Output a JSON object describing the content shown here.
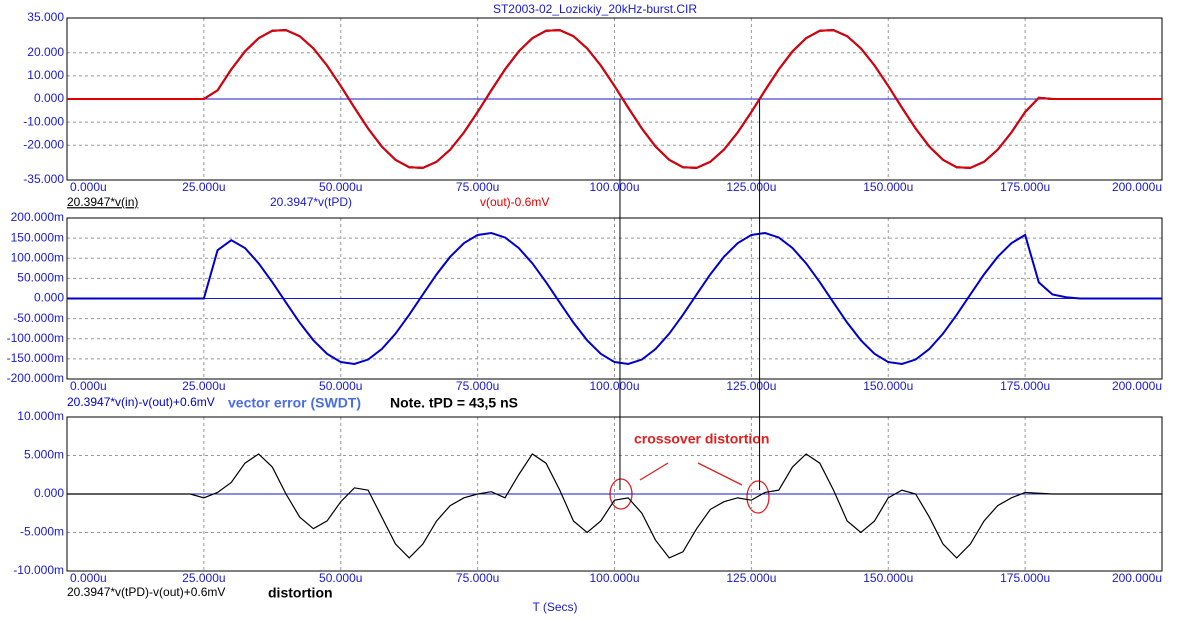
{
  "title": "ST2003-02_Lozickiy_20kHz-burst.CIR",
  "x_label": "T (Secs)",
  "cursors": [
    101,
    126.5
  ],
  "chart_data": [
    {
      "type": "line",
      "xlim": [
        0,
        200
      ],
      "xticks": [
        {
          "value": 0,
          "label": "0.000u"
        },
        {
          "value": 25,
          "label": "25.000u"
        },
        {
          "value": 50,
          "label": "50.000u"
        },
        {
          "value": 75,
          "label": "75.000u"
        },
        {
          "value": 100,
          "label": "100.000u"
        },
        {
          "value": 125,
          "label": "125.000u"
        },
        {
          "value": 150,
          "label": "150.000u"
        },
        {
          "value": 175,
          "label": "175.000u"
        },
        {
          "value": 200,
          "label": "200.000u"
        }
      ],
      "ylim": [
        -35,
        35
      ],
      "yticks": [
        {
          "value": 35,
          "label": "35.000"
        },
        {
          "value": 20,
          "label": "20.000"
        },
        {
          "value": 10,
          "label": "10.000"
        },
        {
          "value": 0,
          "label": "0.000"
        },
        {
          "value": -10,
          "label": "-10.000"
        },
        {
          "value": -20,
          "label": "-20.000"
        },
        {
          "value": -35,
          "label": "-35.000"
        }
      ],
      "grid": true,
      "x": [
        0,
        2.5,
        5,
        7.5,
        10,
        12.5,
        15,
        17.5,
        20,
        22.5,
        25,
        27.5,
        30,
        32.5,
        35,
        37.5,
        40,
        42.5,
        45,
        47.5,
        50,
        52.5,
        55,
        57.5,
        60,
        62.5,
        65,
        67.5,
        70,
        72.5,
        75,
        77.5,
        80,
        82.5,
        85,
        87.5,
        90,
        92.5,
        95,
        97.5,
        100,
        102.5,
        105,
        107.5,
        110,
        112.5,
        115,
        117.5,
        120,
        122.5,
        125,
        127.5,
        130,
        132.5,
        135,
        137.5,
        140,
        142.5,
        145,
        147.5,
        150,
        152.5,
        155,
        157.5,
        160,
        162.5,
        165,
        167.5,
        170,
        172.5,
        175,
        177.5,
        180,
        182.5,
        185,
        187.5,
        190,
        192.5,
        195,
        197.5,
        200
      ],
      "series": [
        {
          "name": "20.3947*v(in)",
          "color": "#000000",
          "values": [
            0,
            0,
            0,
            0,
            0,
            0,
            0,
            0,
            0,
            0,
            0,
            3.76,
            12.77,
            20.54,
            26.29,
            29.47,
            29.76,
            27.14,
            21.87,
            14.45,
            5.62,
            -3.76,
            -12.77,
            -20.54,
            -26.29,
            -29.47,
            -29.76,
            -27.14,
            -21.87,
            -14.45,
            -5.62,
            3.76,
            12.77,
            20.54,
            26.29,
            29.47,
            29.76,
            27.14,
            21.87,
            14.45,
            5.62,
            -3.76,
            -12.77,
            -20.54,
            -26.29,
            -29.47,
            -29.76,
            -27.14,
            -21.87,
            -14.45,
            -5.62,
            3.76,
            12.77,
            20.54,
            26.29,
            29.47,
            29.76,
            27.14,
            21.87,
            14.45,
            5.62,
            -3.76,
            -12.77,
            -20.54,
            -26.29,
            -29.47,
            -29.76,
            -27.14,
            -21.87,
            -14.45,
            -5.62,
            0.5,
            0,
            0,
            0,
            0,
            0,
            0,
            0,
            0,
            0
          ]
        },
        {
          "name": "20.3947*v(tPD)",
          "color": "#1a1ac8",
          "values": [
            0,
            0,
            0,
            0,
            0,
            0,
            0,
            0,
            0,
            0,
            0,
            3.76,
            12.77,
            20.54,
            26.29,
            29.47,
            29.76,
            27.14,
            21.87,
            14.45,
            5.62,
            -3.76,
            -12.77,
            -20.54,
            -26.29,
            -29.47,
            -29.76,
            -27.14,
            -21.87,
            -14.45,
            -5.62,
            3.76,
            12.77,
            20.54,
            26.29,
            29.47,
            29.76,
            27.14,
            21.87,
            14.45,
            5.62,
            -3.76,
            -12.77,
            -20.54,
            -26.29,
            -29.47,
            -29.76,
            -27.14,
            -21.87,
            -14.45,
            -5.62,
            3.76,
            12.77,
            20.54,
            26.29,
            29.47,
            29.76,
            27.14,
            21.87,
            14.45,
            5.62,
            -3.76,
            -12.77,
            -20.54,
            -26.29,
            -29.47,
            -29.76,
            -27.14,
            -21.87,
            -14.45,
            -5.62,
            0.5,
            0,
            0,
            0,
            0,
            0,
            0,
            0,
            0,
            0
          ]
        },
        {
          "name": "v(out)-0.6mV",
          "color": "#e00000",
          "values": [
            0,
            0,
            0,
            0,
            0,
            0,
            0,
            0,
            0,
            0,
            0,
            3.76,
            12.77,
            20.54,
            26.29,
            29.47,
            29.76,
            27.14,
            21.87,
            14.45,
            5.62,
            -3.76,
            -12.77,
            -20.54,
            -26.29,
            -29.47,
            -29.76,
            -27.14,
            -21.87,
            -14.45,
            -5.62,
            3.76,
            12.77,
            20.54,
            26.29,
            29.47,
            29.76,
            27.14,
            21.87,
            14.45,
            5.62,
            -3.76,
            -12.77,
            -20.54,
            -26.29,
            -29.47,
            -29.76,
            -27.14,
            -21.87,
            -14.45,
            -5.62,
            3.76,
            12.77,
            20.54,
            26.29,
            29.47,
            29.76,
            27.14,
            21.87,
            14.45,
            5.62,
            -3.76,
            -12.77,
            -20.54,
            -26.29,
            -29.47,
            -29.76,
            -27.14,
            -21.87,
            -14.45,
            -5.62,
            0.5,
            0,
            0,
            0,
            0,
            0,
            0,
            0,
            0,
            0
          ]
        }
      ]
    },
    {
      "type": "line",
      "xlim": [
        0,
        200
      ],
      "xticks": [
        {
          "value": 0,
          "label": "0.000u"
        },
        {
          "value": 25,
          "label": "25.000u"
        },
        {
          "value": 50,
          "label": "50.000u"
        },
        {
          "value": 75,
          "label": "75.000u"
        },
        {
          "value": 100,
          "label": "100.000u"
        },
        {
          "value": 125,
          "label": "125.000u"
        },
        {
          "value": 150,
          "label": "150.000u"
        },
        {
          "value": 175,
          "label": "175.000u"
        },
        {
          "value": 200,
          "label": "200.000u"
        }
      ],
      "ylim": [
        -200,
        200
      ],
      "yticks": [
        {
          "value": 200,
          "label": "200.000m"
        },
        {
          "value": 150,
          "label": "150.000m"
        },
        {
          "value": 100,
          "label": "100.000m"
        },
        {
          "value": 50,
          "label": "50.000m"
        },
        {
          "value": 0,
          "label": "0.000"
        },
        {
          "value": -50,
          "label": "-50.000m"
        },
        {
          "value": -100,
          "label": "-100.000m"
        },
        {
          "value": -150,
          "label": "-150.000m"
        },
        {
          "value": -200,
          "label": "-200.000m"
        }
      ],
      "grid": true,
      "annotations": [
        "vector error (SWDT)",
        "Note. tPD = 43,5 nS"
      ],
      "x": [
        0,
        2.5,
        5,
        7.5,
        10,
        12.5,
        15,
        17.5,
        20,
        22.5,
        25,
        27.5,
        30,
        32.5,
        35,
        37.5,
        40,
        42.5,
        45,
        47.5,
        50,
        52.5,
        55,
        57.5,
        60,
        62.5,
        65,
        67.5,
        70,
        72.5,
        75,
        77.5,
        80,
        82.5,
        85,
        87.5,
        90,
        92.5,
        95,
        97.5,
        100,
        102.5,
        105,
        107.5,
        110,
        112.5,
        115,
        117.5,
        120,
        122.5,
        125,
        127.5,
        130,
        132.5,
        135,
        137.5,
        140,
        142.5,
        145,
        147.5,
        150,
        152.5,
        155,
        157.5,
        160,
        162.5,
        165,
        167.5,
        170,
        172.5,
        175,
        177.5,
        180,
        182.5,
        185,
        187.5,
        190,
        192.5,
        195,
        197.5,
        200
      ],
      "series": [
        {
          "name": "20.3947*v(in)-v(out)+0.6mV",
          "color": "#0000c8",
          "values": [
            0,
            0,
            0,
            0,
            0,
            0,
            0,
            0,
            0,
            0,
            0,
            120,
            145,
            125.5,
            87.4,
            40.6,
            -10.2,
            -60,
            -103.8,
            -137.6,
            -157.9,
            -162.7,
            -151.6,
            -125.5,
            -87.4,
            -40.6,
            10.2,
            60,
            103.8,
            137.6,
            157.9,
            162.7,
            151.6,
            125.5,
            87.4,
            40.6,
            -10.2,
            -60,
            -103.8,
            -137.6,
            -157.9,
            -162.7,
            -151.6,
            -125.5,
            -87.4,
            -40.6,
            10.2,
            60,
            103.8,
            137.6,
            157.9,
            162.7,
            151.6,
            125.5,
            87.4,
            40.6,
            -10.2,
            -60,
            -103.8,
            -137.6,
            -157.9,
            -162.7,
            -151.6,
            -125.5,
            -87.4,
            -40.6,
            10.2,
            60,
            103.8,
            137.6,
            157.9,
            40,
            10,
            3,
            0,
            0,
            0,
            0,
            0,
            0,
            0
          ]
        }
      ]
    },
    {
      "type": "line",
      "xlim": [
        0,
        200
      ],
      "xticks": [
        {
          "value": 0,
          "label": "0.000u"
        },
        {
          "value": 25,
          "label": "25.000u"
        },
        {
          "value": 50,
          "label": "50.000u"
        },
        {
          "value": 75,
          "label": "75.000u"
        },
        {
          "value": 100,
          "label": "100.000u"
        },
        {
          "value": 125,
          "label": "125.000u"
        },
        {
          "value": 150,
          "label": "150.000u"
        },
        {
          "value": 175,
          "label": "175.000u"
        },
        {
          "value": 200,
          "label": "200.000u"
        }
      ],
      "ylim": [
        -10,
        10
      ],
      "yticks": [
        {
          "value": 10,
          "label": "10.000m"
        },
        {
          "value": 5,
          "label": "5.000m"
        },
        {
          "value": 0,
          "label": "0.000"
        },
        {
          "value": -5,
          "label": "-5.000m"
        },
        {
          "value": -10,
          "label": "-10.000m"
        }
      ],
      "grid": true,
      "annotations": [
        "crossover distortion",
        "distortion"
      ],
      "x": [
        0,
        2.5,
        5,
        7.5,
        10,
        12.5,
        15,
        17.5,
        20,
        22.5,
        25,
        27.5,
        30,
        32.5,
        35,
        37.5,
        40,
        42.5,
        45,
        47.5,
        50,
        52.5,
        55,
        57.5,
        60,
        62.5,
        65,
        67.5,
        70,
        72.5,
        75,
        77.5,
        80,
        82.5,
        85,
        87.5,
        90,
        92.5,
        95,
        97.5,
        100,
        102.5,
        105,
        107.5,
        110,
        112.5,
        115,
        117.5,
        120,
        122.5,
        125,
        127.5,
        130,
        132.5,
        135,
        137.5,
        140,
        142.5,
        145,
        147.5,
        150,
        152.5,
        155,
        157.5,
        160,
        162.5,
        165,
        167.5,
        170,
        172.5,
        175,
        177.5,
        180,
        182.5,
        185,
        187.5,
        190,
        192.5,
        195,
        197.5,
        200
      ],
      "series": [
        {
          "name": "20.3947*v(tPD)-v(out)+0.6mV",
          "color": "#000000",
          "values": [
            0,
            0,
            0,
            0,
            0,
            0,
            0,
            0,
            0,
            0,
            -0.5,
            0.2,
            1.5,
            4,
            5.2,
            3.5,
            0,
            -3,
            -4.5,
            -3.5,
            -1,
            0.8,
            0.5,
            -3,
            -6.5,
            -8.3,
            -6.5,
            -3.5,
            -1.5,
            -0.5,
            0,
            0.3,
            -0.5,
            2.5,
            5.2,
            4,
            0.5,
            -3.5,
            -5,
            -3.5,
            -0.8,
            -0.5,
            -2.5,
            -6,
            -8.3,
            -7.5,
            -4.5,
            -2,
            -1,
            -0.5,
            -0.8,
            0.2,
            0.5,
            3.5,
            5.2,
            4,
            0.5,
            -3.5,
            -5,
            -3.5,
            -0.5,
            0.5,
            0,
            -3,
            -6.5,
            -8.3,
            -6.5,
            -3.5,
            -1.5,
            -0.5,
            0.2,
            0.1,
            0,
            0,
            0,
            0,
            0,
            0,
            0,
            0,
            0
          ]
        }
      ]
    }
  ]
}
